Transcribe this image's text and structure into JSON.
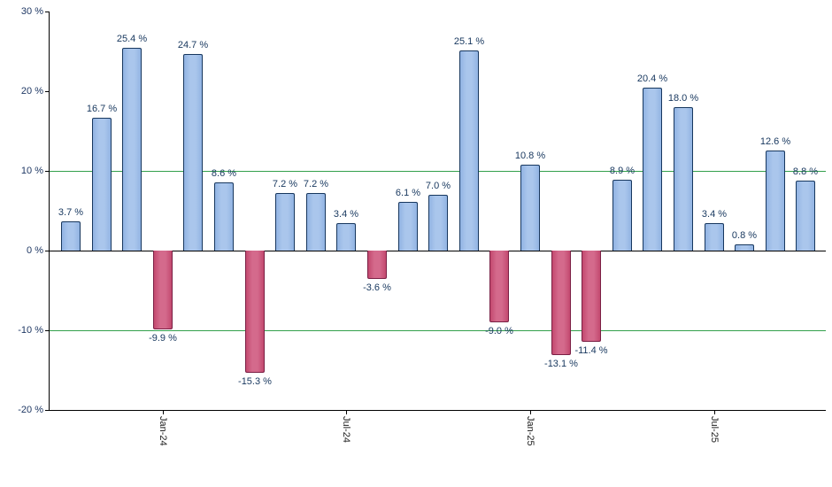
{
  "chart_data": {
    "type": "bar",
    "title": "",
    "xlabel": "",
    "ylabel": "",
    "values": [
      3.7,
      16.7,
      25.4,
      -9.9,
      24.7,
      8.6,
      -15.3,
      7.2,
      7.2,
      3.4,
      -3.6,
      6.1,
      7.0,
      25.1,
      -9.0,
      10.8,
      -13.1,
      -11.4,
      8.9,
      20.4,
      18.0,
      3.4,
      0.8,
      12.6,
      8.8
    ],
    "value_label_suffix": " %",
    "y_axis": {
      "ylim": [
        -20,
        30
      ],
      "ticks": [
        {
          "value": 30,
          "label": "30 %"
        },
        {
          "value": 20,
          "label": "20 %"
        },
        {
          "value": 10,
          "label": "10 %"
        },
        {
          "value": 0,
          "label": "0 %"
        },
        {
          "value": -10,
          "label": "-10 %"
        },
        {
          "value": -20,
          "label": "-20 %"
        }
      ]
    },
    "x_axis": {
      "ticks": [
        {
          "bar_index": 3,
          "label": "Jan-24"
        },
        {
          "bar_index": 9,
          "label": "Jul-24"
        },
        {
          "bar_index": 15,
          "label": "Jan-25"
        },
        {
          "bar_index": 21,
          "label": "Jul-25"
        }
      ]
    },
    "gridlines": {
      "green_at": [
        10,
        -10
      ],
      "zero_line": true
    },
    "legend": null,
    "colors": {
      "positive_fill": "#92b4e3",
      "positive_fill_light": "#aac6ec",
      "positive_border": "#17375e",
      "negative_fill": "#c3496f",
      "negative_fill_light": "#d46a8c",
      "negative_border": "#7a1f44",
      "gridline_green": "#33a04c",
      "zero_line": "#000000",
      "axis": "#000000",
      "value_label": "#17375e",
      "y_tick_label": "#1f3864",
      "x_tick_label": "#222222",
      "background": "#ffffff"
    }
  }
}
